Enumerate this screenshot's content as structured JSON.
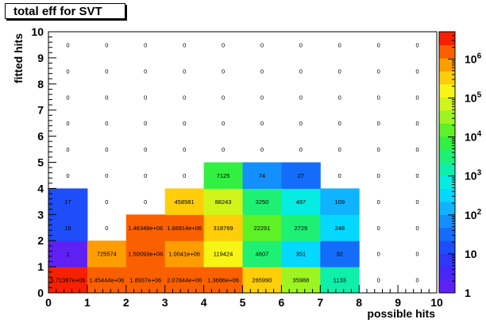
{
  "chart_data": {
    "type": "heatmap",
    "title": "total eff for SVT",
    "xlabel": "possible hits",
    "ylabel": "fitted hits",
    "xlim": [
      0,
      10
    ],
    "ylim": [
      0,
      10
    ],
    "x_ticks": [
      "0",
      "1",
      "2",
      "3",
      "4",
      "5",
      "6",
      "7",
      "8",
      "9",
      "10"
    ],
    "y_ticks": [
      "0",
      "1",
      "2",
      "3",
      "4",
      "5",
      "6",
      "7",
      "8",
      "9",
      "10"
    ],
    "z_scale": "log",
    "z_range": [
      1,
      5000000
    ],
    "z_ticks": [
      {
        "value": 1,
        "label": "1"
      },
      {
        "value": 10,
        "label": "10"
      },
      {
        "value": 100,
        "label": "10",
        "exp": "2"
      },
      {
        "value": 1000,
        "label": "10",
        "exp": "3"
      },
      {
        "value": 10000,
        "label": "10",
        "exp": "4"
      },
      {
        "value": 100000,
        "label": "10",
        "exp": "5"
      },
      {
        "value": 1000000,
        "label": "10",
        "exp": "6"
      }
    ],
    "cells": [
      {
        "x": 0,
        "y": 0,
        "value": 5713870,
        "label": "5.71387e+06"
      },
      {
        "x": 1,
        "y": 0,
        "value": 1454440,
        "label": "1.45444e+06"
      },
      {
        "x": 2,
        "y": 0,
        "value": 1893700,
        "label": "1.8937e+06"
      },
      {
        "x": 3,
        "y": 0,
        "value": 2078440,
        "label": "2.07844e+06"
      },
      {
        "x": 4,
        "y": 0,
        "value": 1368600,
        "label": "1.3686e+06"
      },
      {
        "x": 5,
        "y": 0,
        "value": 265990,
        "label": "265990"
      },
      {
        "x": 6,
        "y": 0,
        "value": 35988,
        "label": "35988"
      },
      {
        "x": 7,
        "y": 0,
        "value": 1133,
        "label": "1133"
      },
      {
        "x": 8,
        "y": 0,
        "value": 0,
        "label": "0"
      },
      {
        "x": 9,
        "y": 0,
        "value": 0,
        "label": "0"
      },
      {
        "x": 0,
        "y": 1,
        "value": 1,
        "label": "1"
      },
      {
        "x": 1,
        "y": 1,
        "value": 725574,
        "label": "725574"
      },
      {
        "x": 2,
        "y": 1,
        "value": 1500930,
        "label": "1.50093e+06"
      },
      {
        "x": 3,
        "y": 1,
        "value": 1004100,
        "label": "1.0041e+06"
      },
      {
        "x": 4,
        "y": 1,
        "value": 119424,
        "label": "119424"
      },
      {
        "x": 5,
        "y": 1,
        "value": 4607,
        "label": "4607"
      },
      {
        "x": 6,
        "y": 1,
        "value": 351,
        "label": "351"
      },
      {
        "x": 7,
        "y": 1,
        "value": 32,
        "label": "32"
      },
      {
        "x": 8,
        "y": 1,
        "value": 0,
        "label": "0"
      },
      {
        "x": 9,
        "y": 1,
        "value": 0,
        "label": "0"
      },
      {
        "x": 0,
        "y": 2,
        "value": 16,
        "label": "16"
      },
      {
        "x": 1,
        "y": 2,
        "value": 0,
        "label": "0"
      },
      {
        "x": 2,
        "y": 2,
        "value": 1463480,
        "label": "1.46348e+06"
      },
      {
        "x": 3,
        "y": 2,
        "value": 1669140,
        "label": "1.66914e+06"
      },
      {
        "x": 4,
        "y": 2,
        "value": 318769,
        "label": "318769"
      },
      {
        "x": 5,
        "y": 2,
        "value": 22291,
        "label": "22291"
      },
      {
        "x": 6,
        "y": 2,
        "value": 2729,
        "label": "2729"
      },
      {
        "x": 7,
        "y": 2,
        "value": 248,
        "label": "248"
      },
      {
        "x": 8,
        "y": 2,
        "value": 0,
        "label": "0"
      },
      {
        "x": 9,
        "y": 2,
        "value": 0,
        "label": "0"
      },
      {
        "x": 0,
        "y": 3,
        "value": 17,
        "label": "17"
      },
      {
        "x": 1,
        "y": 3,
        "value": 0,
        "label": "0"
      },
      {
        "x": 2,
        "y": 3,
        "value": 0,
        "label": "0"
      },
      {
        "x": 3,
        "y": 3,
        "value": 458581,
        "label": "458581"
      },
      {
        "x": 4,
        "y": 3,
        "value": 88243,
        "label": "88243"
      },
      {
        "x": 5,
        "y": 3,
        "value": 3250,
        "label": "3250"
      },
      {
        "x": 6,
        "y": 3,
        "value": 497,
        "label": "497"
      },
      {
        "x": 7,
        "y": 3,
        "value": 109,
        "label": "109"
      },
      {
        "x": 8,
        "y": 3,
        "value": 0,
        "label": "0"
      },
      {
        "x": 9,
        "y": 3,
        "value": 0,
        "label": "0"
      },
      {
        "x": 0,
        "y": 4,
        "value": 0,
        "label": "0"
      },
      {
        "x": 1,
        "y": 4,
        "value": 0,
        "label": "0"
      },
      {
        "x": 2,
        "y": 4,
        "value": 0,
        "label": "0"
      },
      {
        "x": 3,
        "y": 4,
        "value": 0,
        "label": "0"
      },
      {
        "x": 4,
        "y": 4,
        "value": 7125,
        "label": "7125"
      },
      {
        "x": 5,
        "y": 4,
        "value": 74,
        "label": "74"
      },
      {
        "x": 6,
        "y": 4,
        "value": 27,
        "label": "27"
      },
      {
        "x": 7,
        "y": 4,
        "value": 0,
        "label": "0"
      },
      {
        "x": 8,
        "y": 4,
        "value": 0,
        "label": "0"
      },
      {
        "x": 9,
        "y": 4,
        "value": 0,
        "label": "0"
      },
      {
        "x": 0,
        "y": 5,
        "value": 0,
        "label": "0"
      },
      {
        "x": 1,
        "y": 5,
        "value": 0,
        "label": "0"
      },
      {
        "x": 2,
        "y": 5,
        "value": 0,
        "label": "0"
      },
      {
        "x": 3,
        "y": 5,
        "value": 0,
        "label": "0"
      },
      {
        "x": 4,
        "y": 5,
        "value": 0,
        "label": "0"
      },
      {
        "x": 5,
        "y": 5,
        "value": 0,
        "label": "0"
      },
      {
        "x": 6,
        "y": 5,
        "value": 0,
        "label": "0"
      },
      {
        "x": 7,
        "y": 5,
        "value": 0,
        "label": "0"
      },
      {
        "x": 8,
        "y": 5,
        "value": 0,
        "label": "0"
      },
      {
        "x": 9,
        "y": 5,
        "value": 0,
        "label": "0"
      },
      {
        "x": 0,
        "y": 6,
        "value": 0,
        "label": "0"
      },
      {
        "x": 1,
        "y": 6,
        "value": 0,
        "label": "0"
      },
      {
        "x": 2,
        "y": 6,
        "value": 0,
        "label": "0"
      },
      {
        "x": 3,
        "y": 6,
        "value": 0,
        "label": "0"
      },
      {
        "x": 4,
        "y": 6,
        "value": 0,
        "label": "0"
      },
      {
        "x": 5,
        "y": 6,
        "value": 0,
        "label": "0"
      },
      {
        "x": 6,
        "y": 6,
        "value": 0,
        "label": "0"
      },
      {
        "x": 7,
        "y": 6,
        "value": 0,
        "label": "0"
      },
      {
        "x": 8,
        "y": 6,
        "value": 0,
        "label": "0"
      },
      {
        "x": 9,
        "y": 6,
        "value": 0,
        "label": "0"
      },
      {
        "x": 0,
        "y": 7,
        "value": 0,
        "label": "0"
      },
      {
        "x": 1,
        "y": 7,
        "value": 0,
        "label": "0"
      },
      {
        "x": 2,
        "y": 7,
        "value": 0,
        "label": "0"
      },
      {
        "x": 3,
        "y": 7,
        "value": 0,
        "label": "0"
      },
      {
        "x": 4,
        "y": 7,
        "value": 0,
        "label": "0"
      },
      {
        "x": 5,
        "y": 7,
        "value": 0,
        "label": "0"
      },
      {
        "x": 6,
        "y": 7,
        "value": 0,
        "label": "0"
      },
      {
        "x": 7,
        "y": 7,
        "value": 0,
        "label": "0"
      },
      {
        "x": 8,
        "y": 7,
        "value": 0,
        "label": "0"
      },
      {
        "x": 9,
        "y": 7,
        "value": 0,
        "label": "0"
      },
      {
        "x": 0,
        "y": 8,
        "value": 0,
        "label": "0"
      },
      {
        "x": 1,
        "y": 8,
        "value": 0,
        "label": "0"
      },
      {
        "x": 2,
        "y": 8,
        "value": 0,
        "label": "0"
      },
      {
        "x": 3,
        "y": 8,
        "value": 0,
        "label": "0"
      },
      {
        "x": 4,
        "y": 8,
        "value": 0,
        "label": "0"
      },
      {
        "x": 5,
        "y": 8,
        "value": 0,
        "label": "0"
      },
      {
        "x": 6,
        "y": 8,
        "value": 0,
        "label": "0"
      },
      {
        "x": 7,
        "y": 8,
        "value": 0,
        "label": "0"
      },
      {
        "x": 8,
        "y": 8,
        "value": 0,
        "label": "0"
      },
      {
        "x": 9,
        "y": 8,
        "value": 0,
        "label": "0"
      },
      {
        "x": 0,
        "y": 9,
        "value": 0,
        "label": "0"
      },
      {
        "x": 1,
        "y": 9,
        "value": 0,
        "label": "0"
      },
      {
        "x": 2,
        "y": 9,
        "value": 0,
        "label": "0"
      },
      {
        "x": 3,
        "y": 9,
        "value": 0,
        "label": "0"
      },
      {
        "x": 4,
        "y": 9,
        "value": 0,
        "label": "0"
      },
      {
        "x": 5,
        "y": 9,
        "value": 0,
        "label": "0"
      },
      {
        "x": 6,
        "y": 9,
        "value": 0,
        "label": "0"
      },
      {
        "x": 7,
        "y": 9,
        "value": 0,
        "label": "0"
      },
      {
        "x": 8,
        "y": 9,
        "value": 0,
        "label": "0"
      },
      {
        "x": 9,
        "y": 9,
        "value": 0,
        "label": "0"
      }
    ]
  }
}
